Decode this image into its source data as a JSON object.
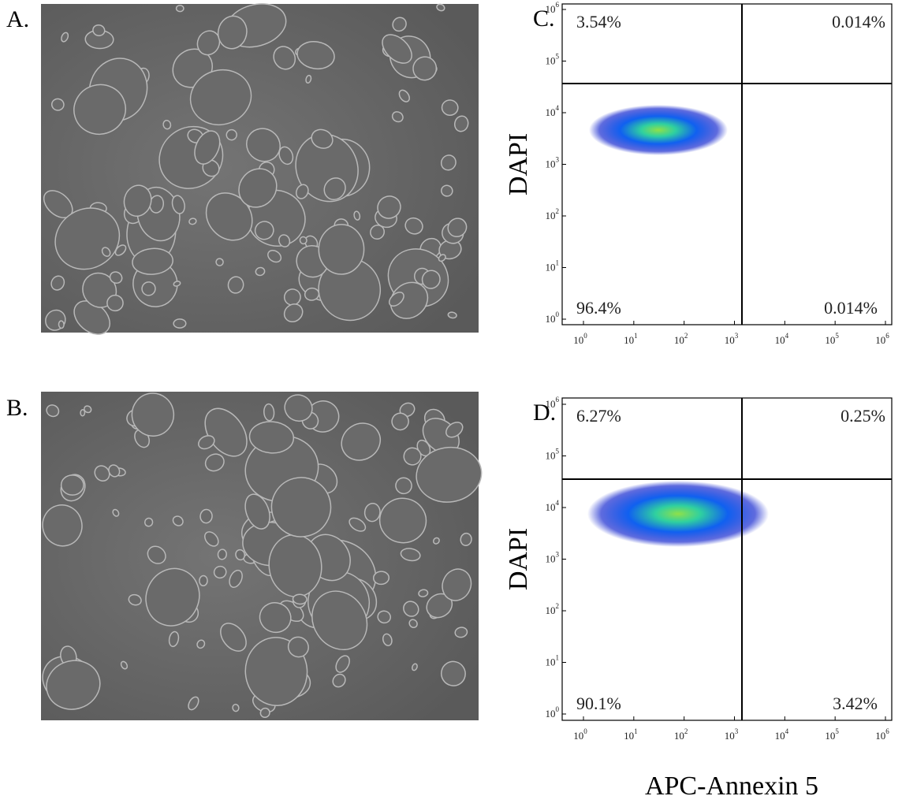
{
  "images": [
    {
      "label": "A."
    },
    {
      "label": "B."
    }
  ],
  "plots": [
    {
      "label": "C.",
      "y_label": "DAPI",
      "quadrants": {
        "upper_left": "3.54%",
        "upper_right": "0.014%",
        "lower_left": "96.4%",
        "lower_right": "0.014%"
      }
    },
    {
      "label": "D.",
      "y_label": "DAPI",
      "quadrants": {
        "upper_left": "6.27%",
        "upper_right": "0.25%",
        "lower_left": "90.1%",
        "lower_right": "3.42%"
      }
    }
  ],
  "axis_ticks": {
    "base": "10",
    "exponents": [
      0,
      1,
      2,
      3,
      4,
      5,
      6
    ]
  },
  "x_label": "APC-Annexin 5"
}
